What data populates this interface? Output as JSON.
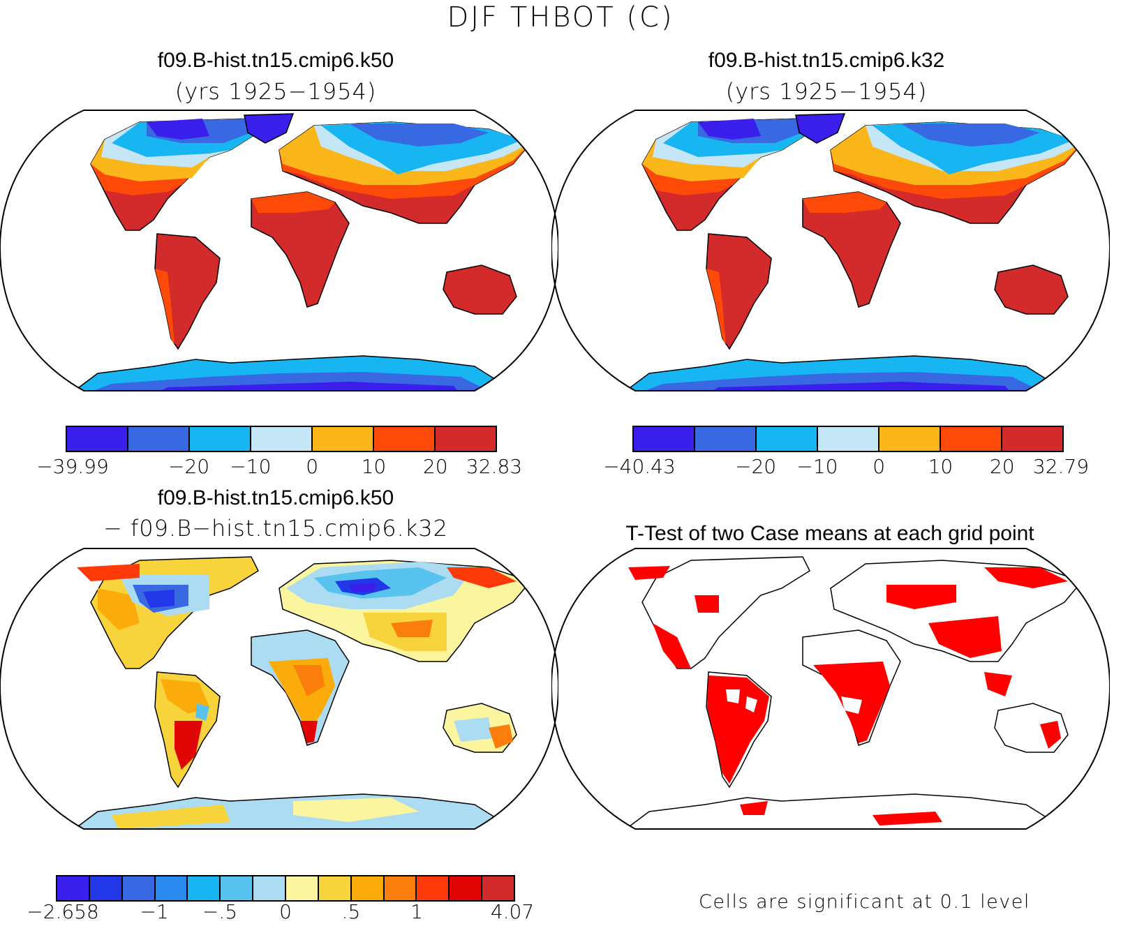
{
  "title": "DJF THBOT (C)",
  "panels": [
    {
      "id": "case1",
      "title": "f09.B-hist.tn15.cmip6.k50",
      "subtitle": "(yrs 1925−1954)",
      "colorbar": {
        "colors": [
          "#3a1fec",
          "#3969e2",
          "#17b5f1",
          "#c4e6f7",
          "#fbb719",
          "#fe4a09",
          "#d32a2b"
        ],
        "labels": [
          "−39.99",
          "−20",
          "−10",
          "0",
          "10",
          "20",
          "32.83"
        ]
      }
    },
    {
      "id": "case2",
      "title": "f09.B-hist.tn15.cmip6.k32",
      "subtitle": "(yrs 1925−1954)",
      "colorbar": {
        "colors": [
          "#3a1fec",
          "#3969e2",
          "#17b5f1",
          "#c4e6f7",
          "#fbb719",
          "#fe4a09",
          "#d32a2b"
        ],
        "labels": [
          "−40.43",
          "−20",
          "−10",
          "0",
          "10",
          "20",
          "32.79"
        ]
      }
    },
    {
      "id": "difference",
      "title": "f09.B-hist.tn15.cmip6.k50",
      "subtitle": "− f09.B−hist.tn15.cmip6.k32",
      "colorbar": {
        "colors": [
          "#3a1fec",
          "#2137e8",
          "#3969e2",
          "#2b8af0",
          "#17b5f1",
          "#58c3ef",
          "#abdcf2",
          "#fbf5a0",
          "#f8d43c",
          "#fbac0b",
          "#fb7d0b",
          "#fe3a0b",
          "#e00404",
          "#d32a2b"
        ],
        "labels": [
          "−2.658",
          "−1",
          "−.5",
          "0",
          ".5",
          "1",
          "4.07"
        ]
      }
    },
    {
      "id": "ttest",
      "title": "T-Test of two Case means at each grid point",
      "note": "Cells are significant at 0.1 level",
      "color": "#ff0000"
    }
  ]
}
